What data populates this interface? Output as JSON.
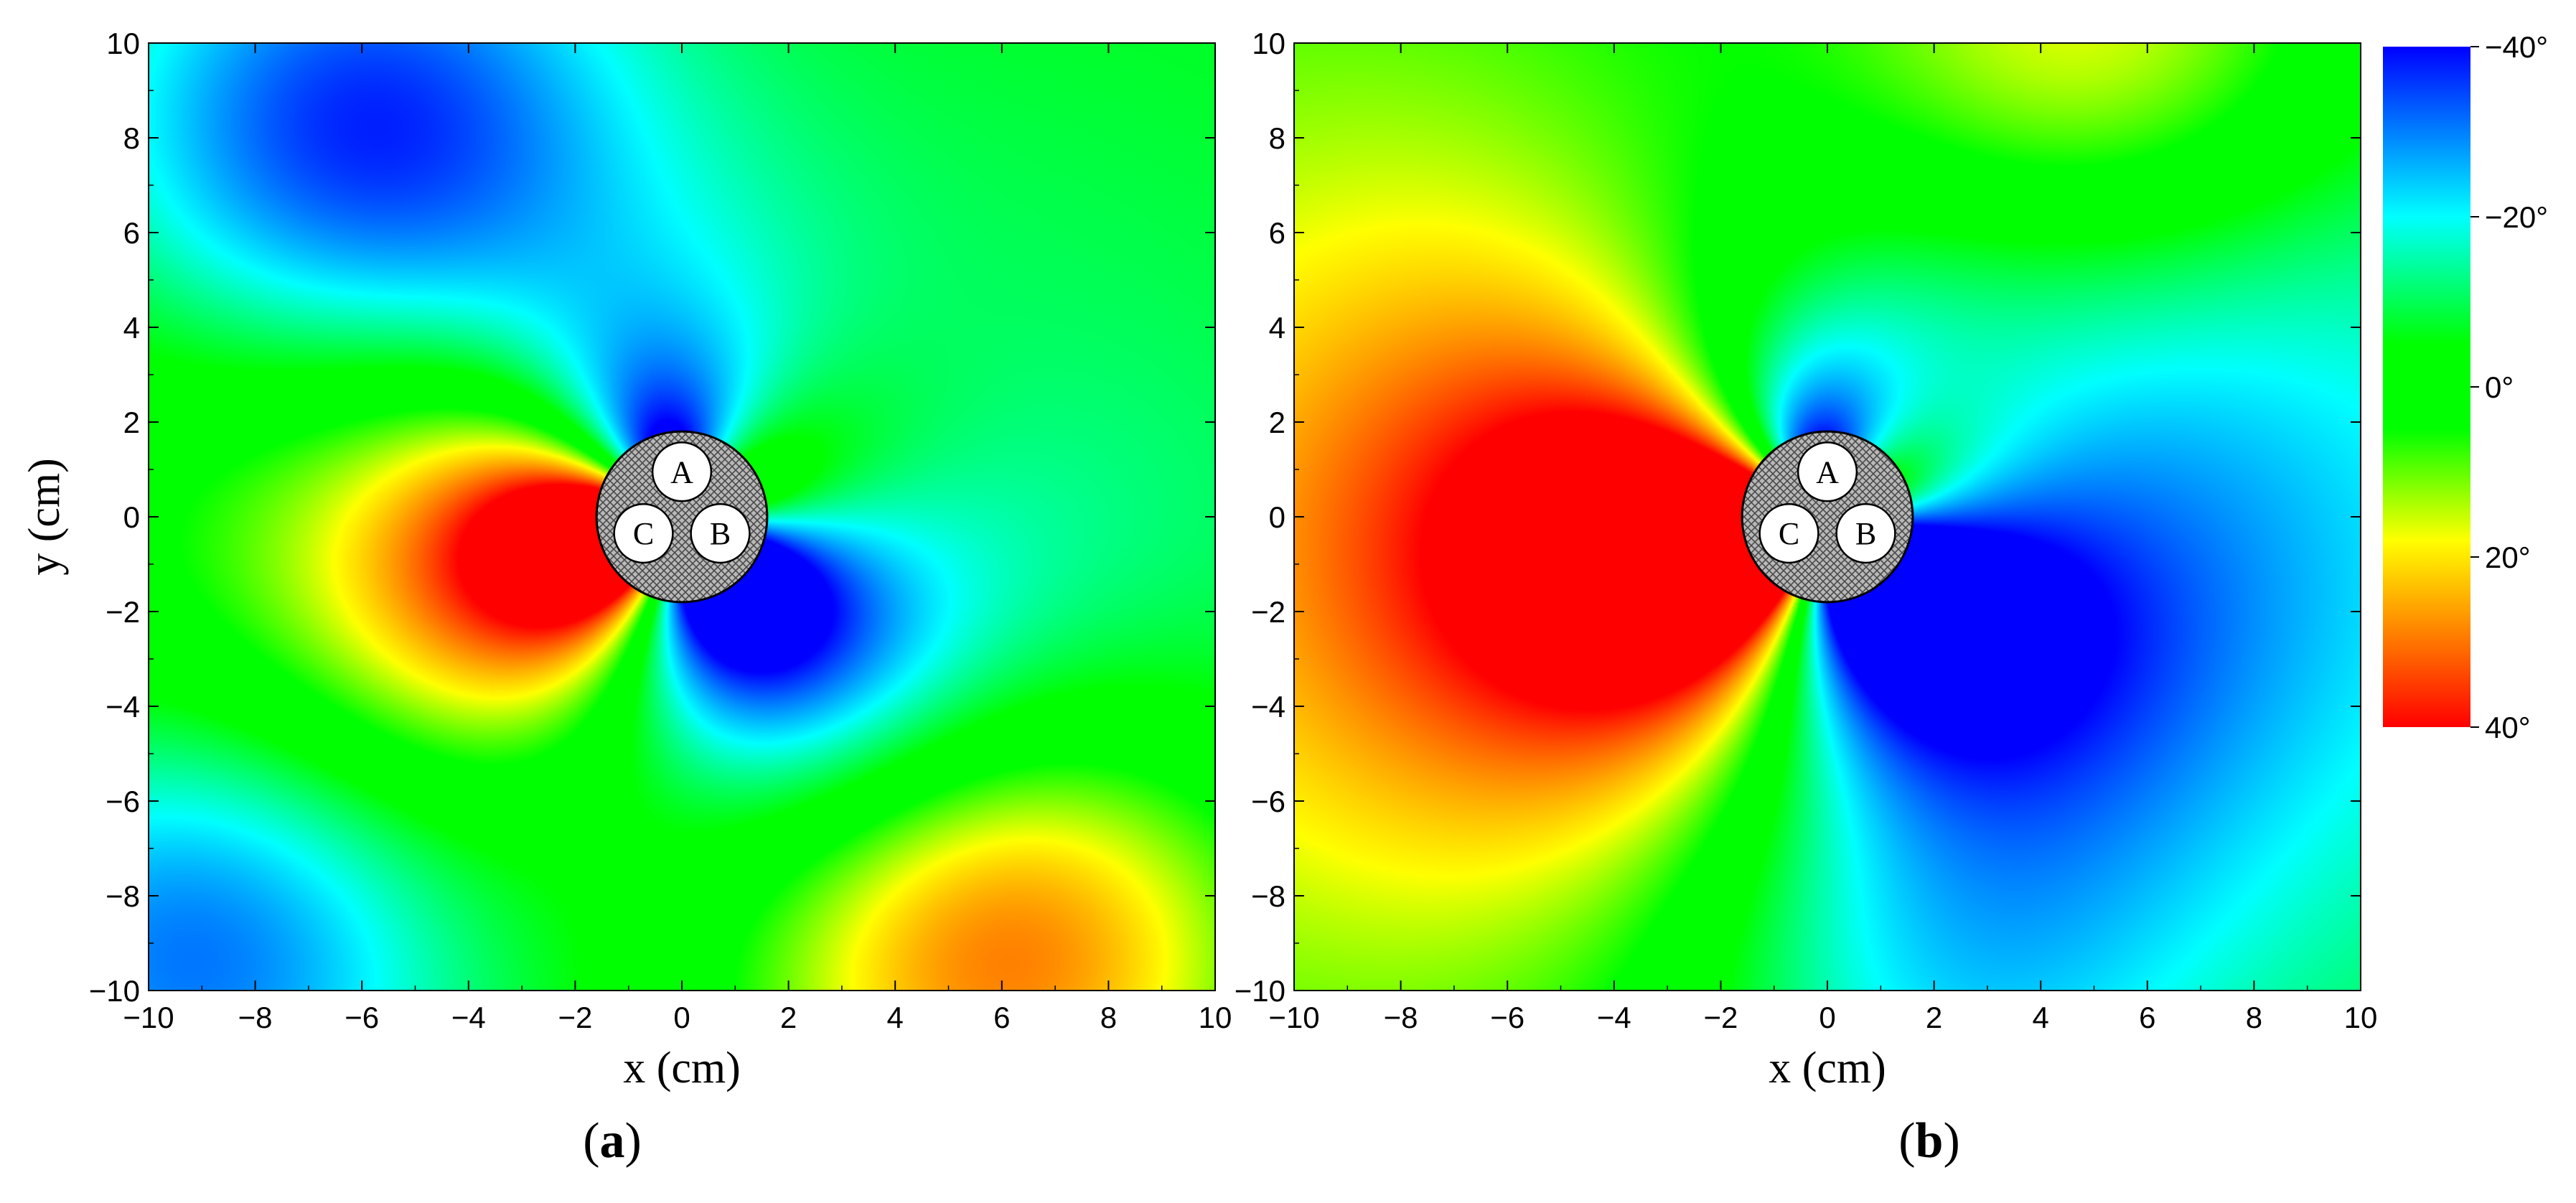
{
  "chart_data": [
    {
      "type": "heatmap",
      "panel_label": "(a)",
      "panel_letter": "a",
      "xlabel": "x (cm)",
      "ylabel": "y (cm)",
      "xlim": [
        -10,
        10
      ],
      "ylim": [
        -10,
        10
      ],
      "x_ticks": [
        -10,
        -8,
        -6,
        -4,
        -2,
        0,
        2,
        4,
        6,
        8,
        10
      ],
      "y_ticks": [
        -10,
        -8,
        -6,
        -4,
        -2,
        0,
        2,
        4,
        6,
        8,
        10
      ],
      "x_tick_labels": [
        "−10",
        "−8",
        "−6",
        "−4",
        "−2",
        "0",
        "2",
        "4",
        "6",
        "8",
        "10"
      ],
      "y_tick_labels": [
        "−10",
        "−8",
        "−6",
        "−4",
        "−2",
        "0",
        "2",
        "4",
        "6",
        "8",
        "10"
      ],
      "field": {
        "description_values": "phase angle in degrees",
        "base": -5,
        "terms": [
          {
            "amplitude": 40,
            "harmonic": 2,
            "phase_deg": -45,
            "decay": 3.0
          },
          {
            "amplitude": 30,
            "harmonic": 1,
            "phase_deg": 180,
            "decay": 5.0
          },
          {
            "amplitude": -35,
            "harmonic": 0,
            "center": [
              -6,
              8
            ],
            "radius": 5
          },
          {
            "amplitude": -30,
            "harmonic": 0,
            "center": [
              -9,
              -9
            ],
            "radius": 5
          },
          {
            "amplitude": 40,
            "harmonic": 0,
            "center": [
              6,
              -9
            ],
            "radius": 5
          }
        ]
      },
      "cable": {
        "center": [
          0,
          0
        ],
        "radius": 1.6,
        "conductors": [
          {
            "label": "A",
            "center": [
              0,
              0.95
            ],
            "radius": 0.55
          },
          {
            "label": "B",
            "center": [
              0.72,
              -0.35
            ],
            "radius": 0.55
          },
          {
            "label": "C",
            "center": [
              -0.72,
              -0.35
            ],
            "radius": 0.55
          }
        ]
      }
    },
    {
      "type": "heatmap",
      "panel_label": "(b)",
      "panel_letter": "b",
      "xlabel": "x (cm)",
      "ylabel": "",
      "xlim": [
        -10,
        10
      ],
      "ylim": [
        -10,
        10
      ],
      "x_ticks": [
        -10,
        -8,
        -6,
        -4,
        -2,
        0,
        2,
        4,
        6,
        8,
        10
      ],
      "y_ticks": [
        -10,
        -8,
        -6,
        -4,
        -2,
        0,
        2,
        4,
        6,
        8,
        10
      ],
      "x_tick_labels": [
        "−10",
        "−8",
        "−6",
        "−4",
        "−2",
        "0",
        "2",
        "4",
        "6",
        "8",
        "10"
      ],
      "y_tick_labels": [
        "−10",
        "−8",
        "−6",
        "−4",
        "−2",
        "0",
        "2",
        "4",
        "6",
        "8",
        "10"
      ],
      "field": {
        "description_values": "phase angle in degrees",
        "base": 0,
        "terms": [
          {
            "amplitude": 45,
            "harmonic": 2,
            "phase_deg": -45,
            "decay": 3.0
          },
          {
            "amplitude": 40,
            "harmonic": 1,
            "phase_deg": 180,
            "decay": 8.0
          },
          {
            "amplitude": 25,
            "harmonic": 0,
            "center": [
              5,
              10
            ],
            "radius": 5
          },
          {
            "amplitude": -15,
            "harmonic": 0,
            "center": [
              2,
              -10
            ],
            "radius": 5
          }
        ]
      },
      "cable": {
        "center": [
          0,
          0
        ],
        "radius": 1.6,
        "conductors": [
          {
            "label": "A",
            "center": [
              0,
              0.95
            ],
            "radius": 0.55
          },
          {
            "label": "B",
            "center": [
              0.72,
              -0.35
            ],
            "radius": 0.55
          },
          {
            "label": "C",
            "center": [
              -0.72,
              -0.35
            ],
            "radius": 0.55
          }
        ]
      }
    }
  ],
  "colorbar": {
    "min": -40,
    "max": 40,
    "ticks": [
      -40,
      -20,
      0,
      20,
      40
    ],
    "tick_labels": [
      "−40°",
      "−20°",
      "0°",
      "20°",
      "40°"
    ],
    "colormap": [
      {
        "value": -40,
        "color": "#0000ff"
      },
      {
        "value": -20,
        "color": "#00ffff"
      },
      {
        "value": -5,
        "color": "#00ff00"
      },
      {
        "value": 5,
        "color": "#00ff00"
      },
      {
        "value": 18,
        "color": "#ffff00"
      },
      {
        "value": 28,
        "color": "#ff8c00"
      },
      {
        "value": 40,
        "color": "#ff0000"
      }
    ]
  },
  "colors": {
    "cable_fill": "#9a9a9a",
    "conductor_fill": "#ffffff",
    "axis": "#000000"
  }
}
